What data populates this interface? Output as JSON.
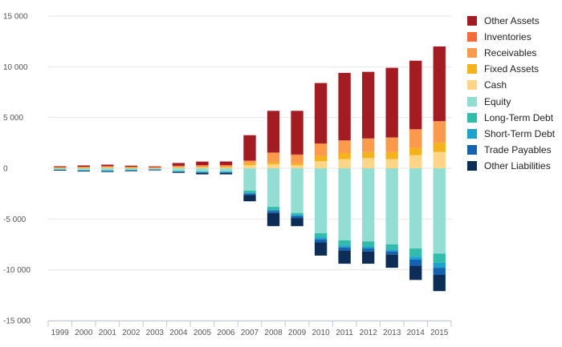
{
  "chart_data": {
    "type": "bar",
    "stacked": true,
    "title": "",
    "xlabel": "",
    "ylabel": "",
    "ylim": [
      -15000,
      15000
    ],
    "yticks": [
      15000,
      10000,
      5000,
      0,
      -5000,
      -10000,
      -15000
    ],
    "ytick_labels": [
      "15 000",
      "10 000",
      "5 000",
      "0",
      "-5 000",
      "-10 000",
      "-15 000"
    ],
    "grid": true,
    "legend_position": "right",
    "categories": [
      "1999",
      "2000",
      "2001",
      "2002",
      "2003",
      "2004",
      "2005",
      "2006",
      "2007",
      "2008",
      "2009",
      "2010",
      "2011",
      "2012",
      "2013",
      "2014",
      "2015"
    ],
    "series": [
      {
        "name": "Cash",
        "color": "#fdd587",
        "values": [
          30,
          40,
          50,
          40,
          30,
          60,
          80,
          80,
          300,
          400,
          300,
          700,
          900,
          1000,
          900,
          1300,
          1600
        ]
      },
      {
        "name": "Fixed Assets",
        "color": "#f5b21a",
        "values": [
          30,
          40,
          50,
          40,
          30,
          60,
          70,
          80,
          200,
          200,
          200,
          500,
          600,
          600,
          700,
          700,
          900
        ]
      },
      {
        "name": "Receivables",
        "color": "#fb9a4a",
        "values": [
          40,
          50,
          70,
          50,
          40,
          80,
          100,
          100,
          200,
          900,
          800,
          1200,
          1200,
          1300,
          1400,
          1800,
          2100
        ]
      },
      {
        "name": "Inventories",
        "color": "#f36c3a",
        "values": [
          20,
          30,
          40,
          30,
          20,
          50,
          60,
          60,
          60,
          60,
          60,
          50,
          50,
          50,
          50,
          50,
          50
        ]
      },
      {
        "name": "Other Assets",
        "color": "#a51b22",
        "values": [
          80,
          120,
          150,
          100,
          70,
          270,
          350,
          350,
          2500,
          4100,
          4300,
          5950,
          6650,
          6550,
          6850,
          6750,
          7350
        ]
      },
      {
        "name": "Equity",
        "color": "#92ded3",
        "values": [
          -120,
          -180,
          -200,
          -150,
          -100,
          -250,
          -300,
          -300,
          -2200,
          -3800,
          -4400,
          -6400,
          -7100,
          -7200,
          -7500,
          -7900,
          -8400
        ]
      },
      {
        "name": "Long-Term Debt",
        "color": "#32bcab",
        "values": [
          -20,
          -30,
          -40,
          -30,
          -20,
          -40,
          -50,
          -50,
          -200,
          -300,
          -200,
          -400,
          -500,
          -500,
          -500,
          -800,
          -900
        ]
      },
      {
        "name": "Short-Term Debt",
        "color": "#1ba2cf",
        "values": [
          -20,
          -30,
          -40,
          -30,
          -20,
          -40,
          -50,
          -50,
          -100,
          -100,
          -100,
          -200,
          -200,
          -200,
          -200,
          -300,
          -500
        ]
      },
      {
        "name": "Trade Payables",
        "color": "#1462b0",
        "values": [
          -20,
          -30,
          -40,
          -30,
          -20,
          -40,
          -50,
          -50,
          -150,
          -200,
          -200,
          -300,
          -300,
          -300,
          -300,
          -600,
          -700
        ]
      },
      {
        "name": "Other Liabilities",
        "color": "#0c2d55",
        "values": [
          -20,
          -30,
          -40,
          -30,
          -20,
          -80,
          -150,
          -150,
          -600,
          -1300,
          -800,
          -1300,
          -1300,
          -1200,
          -1300,
          -1400,
          -1600
        ]
      }
    ],
    "legend": [
      {
        "name": "Other Assets",
        "color": "#a51b22"
      },
      {
        "name": "Inventories",
        "color": "#f36c3a"
      },
      {
        "name": "Receivables",
        "color": "#fb9a4a"
      },
      {
        "name": "Fixed Assets",
        "color": "#f5b21a"
      },
      {
        "name": "Cash",
        "color": "#fdd587"
      },
      {
        "name": "Equity",
        "color": "#92ded3"
      },
      {
        "name": "Long-Term Debt",
        "color": "#32bcab"
      },
      {
        "name": "Short-Term Debt",
        "color": "#1ba2cf"
      },
      {
        "name": "Trade Payables",
        "color": "#1462b0"
      },
      {
        "name": "Other Liabilities",
        "color": "#0c2d55"
      }
    ]
  }
}
